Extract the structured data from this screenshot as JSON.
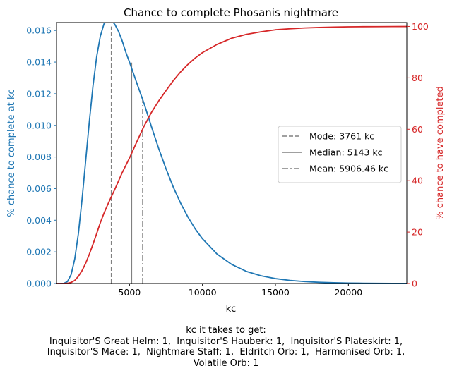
{
  "chart_data": {
    "type": "line",
    "title": "Chance to complete Phosanis nightmare",
    "xlabel": "kc",
    "ylabel_left": "% chance to complete at kc",
    "ylabel_right": "% chance to have completed",
    "xlim": [
      0,
      24000
    ],
    "ylim_left": [
      0,
      0.0165
    ],
    "ylim_right": [
      0,
      101.5
    ],
    "x_ticks": [
      5000,
      10000,
      15000,
      20000
    ],
    "y_ticks_left": [
      0.0,
      0.002,
      0.004,
      0.006,
      0.008,
      0.01,
      0.012,
      0.014,
      0.016
    ],
    "y_ticks_right": [
      0,
      20,
      40,
      60,
      80,
      100
    ],
    "series": [
      {
        "axis": "left",
        "color": "#1f77b4",
        "x": [
          0,
          250,
          500,
          750,
          1000,
          1250,
          1500,
          1750,
          2000,
          2250,
          2500,
          2750,
          3000,
          3250,
          3500,
          3761,
          4000,
          4250,
          4500,
          4750,
          5000,
          5500,
          6000,
          6500,
          7000,
          7500,
          8000,
          8500,
          9000,
          9500,
          10000,
          11000,
          12000,
          13000,
          14000,
          15000,
          16000,
          17000,
          18000,
          19000,
          20000,
          21000,
          22000,
          23000,
          24000
        ],
        "y": [
          0,
          0.0,
          1e-05,
          0.00012,
          0.00056,
          0.00155,
          0.00316,
          0.00532,
          0.00777,
          0.01025,
          0.0125,
          0.01433,
          0.01563,
          0.01641,
          0.01665,
          0.01663,
          0.01638,
          0.01594,
          0.01534,
          0.01462,
          0.014,
          0.01268,
          0.01138,
          0.00993,
          0.00854,
          0.00726,
          0.0061,
          0.00509,
          0.00421,
          0.00346,
          0.00283,
          0.00186,
          0.00121,
          0.00077,
          0.00049,
          0.00031,
          0.000195,
          0.000122,
          7.6e-05,
          4.7e-05,
          2.9e-05,
          1.8e-05,
          1.1e-05,
          7e-06,
          4e-06
        ]
      },
      {
        "axis": "right",
        "color": "#d62728",
        "x": [
          0,
          250,
          500,
          750,
          1000,
          1250,
          1500,
          1750,
          2000,
          2250,
          2500,
          2750,
          3000,
          3250,
          3500,
          3761,
          4000,
          4500,
          5000,
          5500,
          6000,
          6500,
          7000,
          7500,
          8000,
          8500,
          9000,
          9500,
          10000,
          11000,
          12000,
          13000,
          14000,
          15000,
          16000,
          17000,
          18000,
          19000,
          20000,
          21000,
          22000,
          23000,
          24000
        ],
        "y": [
          0,
          0.0,
          0.01,
          0.08,
          0.4,
          1.2,
          2.8,
          5.0,
          7.9,
          11.4,
          15.3,
          19.4,
          23.6,
          27.3,
          30.6,
          33.8,
          36.7,
          43.1,
          48.8,
          55.1,
          61.2,
          66.5,
          71.0,
          75.0,
          78.9,
          82.3,
          85.2,
          87.7,
          89.8,
          93.0,
          95.4,
          96.9,
          97.9,
          98.7,
          99.1,
          99.4,
          99.6,
          99.75,
          99.85,
          99.9,
          99.93,
          99.95,
          99.97
        ]
      }
    ],
    "markers": [
      {
        "label": "Mode: 3761 kc",
        "x": 3761,
        "y_top": 0.01625,
        "style": "dashed"
      },
      {
        "label": "Median: 5143 kc",
        "x": 5143,
        "y_top": 0.01397,
        "style": "solid"
      },
      {
        "label": "Mean: 5906.46 kc",
        "x": 5906.46,
        "y_top": 0.01164,
        "style": "dashdot"
      }
    ],
    "legend_position": "center-right",
    "grid": false,
    "colors": {
      "left_axis": "#1f77b4",
      "right_axis": "#d62728",
      "markers": "#808080"
    }
  },
  "caption": {
    "lines": [
      "kc it takes to get:",
      "Inquisitor'S Great Helm: 1,  Inquisitor'S Hauberk: 1,  Inquisitor'S Plateskirt: 1,",
      "Inquisitor'S Mace: 1,  Nightmare Staff: 1,  Eldritch Orb: 1,  Harmonised Orb: 1,",
      "Volatile Orb: 1"
    ]
  }
}
